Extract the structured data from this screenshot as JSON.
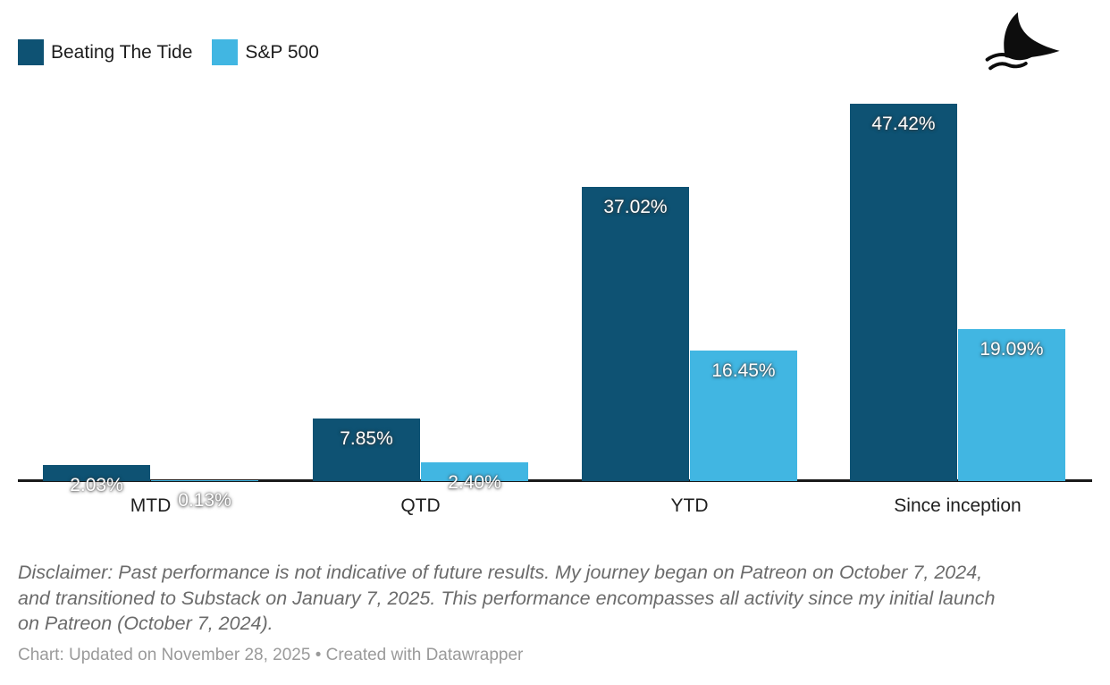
{
  "legend": {
    "items": [
      {
        "label": "Beating The Tide",
        "color": "#0e5273"
      },
      {
        "label": "S&P 500",
        "color": "#41b6e2"
      }
    ]
  },
  "logo": {
    "name": "shark-fin-over-waves"
  },
  "chart_data": {
    "type": "bar",
    "title": "",
    "xlabel": "",
    "ylabel": "",
    "categories": [
      "MTD",
      "QTD",
      "YTD",
      "Since inception"
    ],
    "series": [
      {
        "name": "Beating The Tide",
        "color": "#0e5273",
        "values": [
          2.03,
          7.85,
          37.02,
          47.42
        ],
        "labels": [
          "2.03%",
          "7.85%",
          "37.02%",
          "47.42%"
        ]
      },
      {
        "name": "S&P 500",
        "color": "#41b6e2",
        "values": [
          0.13,
          2.4,
          16.45,
          19.09
        ],
        "labels": [
          "0.13%",
          "2.40%",
          "16.45%",
          "19.09%"
        ]
      }
    ],
    "ylim": [
      0,
      50
    ],
    "grid": false,
    "legend_position": "top-left",
    "value_label_format": "percent, 2 decimals, white with gray outline"
  },
  "footer": {
    "disclaimer_lines": [
      "Disclaimer: Past performance is not indicative of future results. My journey began on Patreon on October 7, 2024,",
      "and transitioned to Substack on January 7, 2025. This performance encompasses all activity since my initial launch",
      "on Patreon (October 7, 2024)."
    ],
    "credit": "Chart: Updated on November 28, 2025 • Created with Datawrapper"
  }
}
